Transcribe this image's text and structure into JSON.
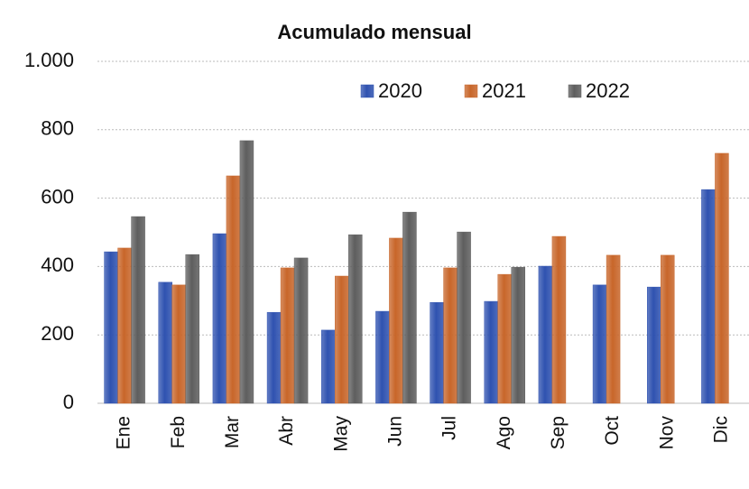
{
  "chart_data": {
    "type": "bar",
    "title": "Acumulado mensual",
    "categories": [
      "Ene",
      "Feb",
      "Mar",
      "Abr",
      "May",
      "Jun",
      "Jul",
      "Ago",
      "Sep",
      "Oct",
      "Nov",
      "Dic"
    ],
    "series": [
      {
        "name": "2020",
        "color": "#2f52b0",
        "values": [
          443,
          354,
          496,
          266,
          214,
          269,
          295,
          298,
          401,
          346,
          340,
          625
        ]
      },
      {
        "name": "2021",
        "color": "#c8662a",
        "values": [
          454,
          346,
          665,
          396,
          372,
          483,
          396,
          377,
          488,
          433,
          433,
          731
        ]
      },
      {
        "name": "2022",
        "color": "#5e5e5e",
        "values": [
          546,
          435,
          768,
          425,
          493,
          559,
          501,
          398,
          null,
          null,
          null,
          null
        ]
      }
    ],
    "ylim": [
      0,
      1000
    ],
    "yticks": [
      0,
      200,
      400,
      600,
      800,
      {
        "value": 1000,
        "label": "1.000"
      }
    ],
    "grid": true
  }
}
